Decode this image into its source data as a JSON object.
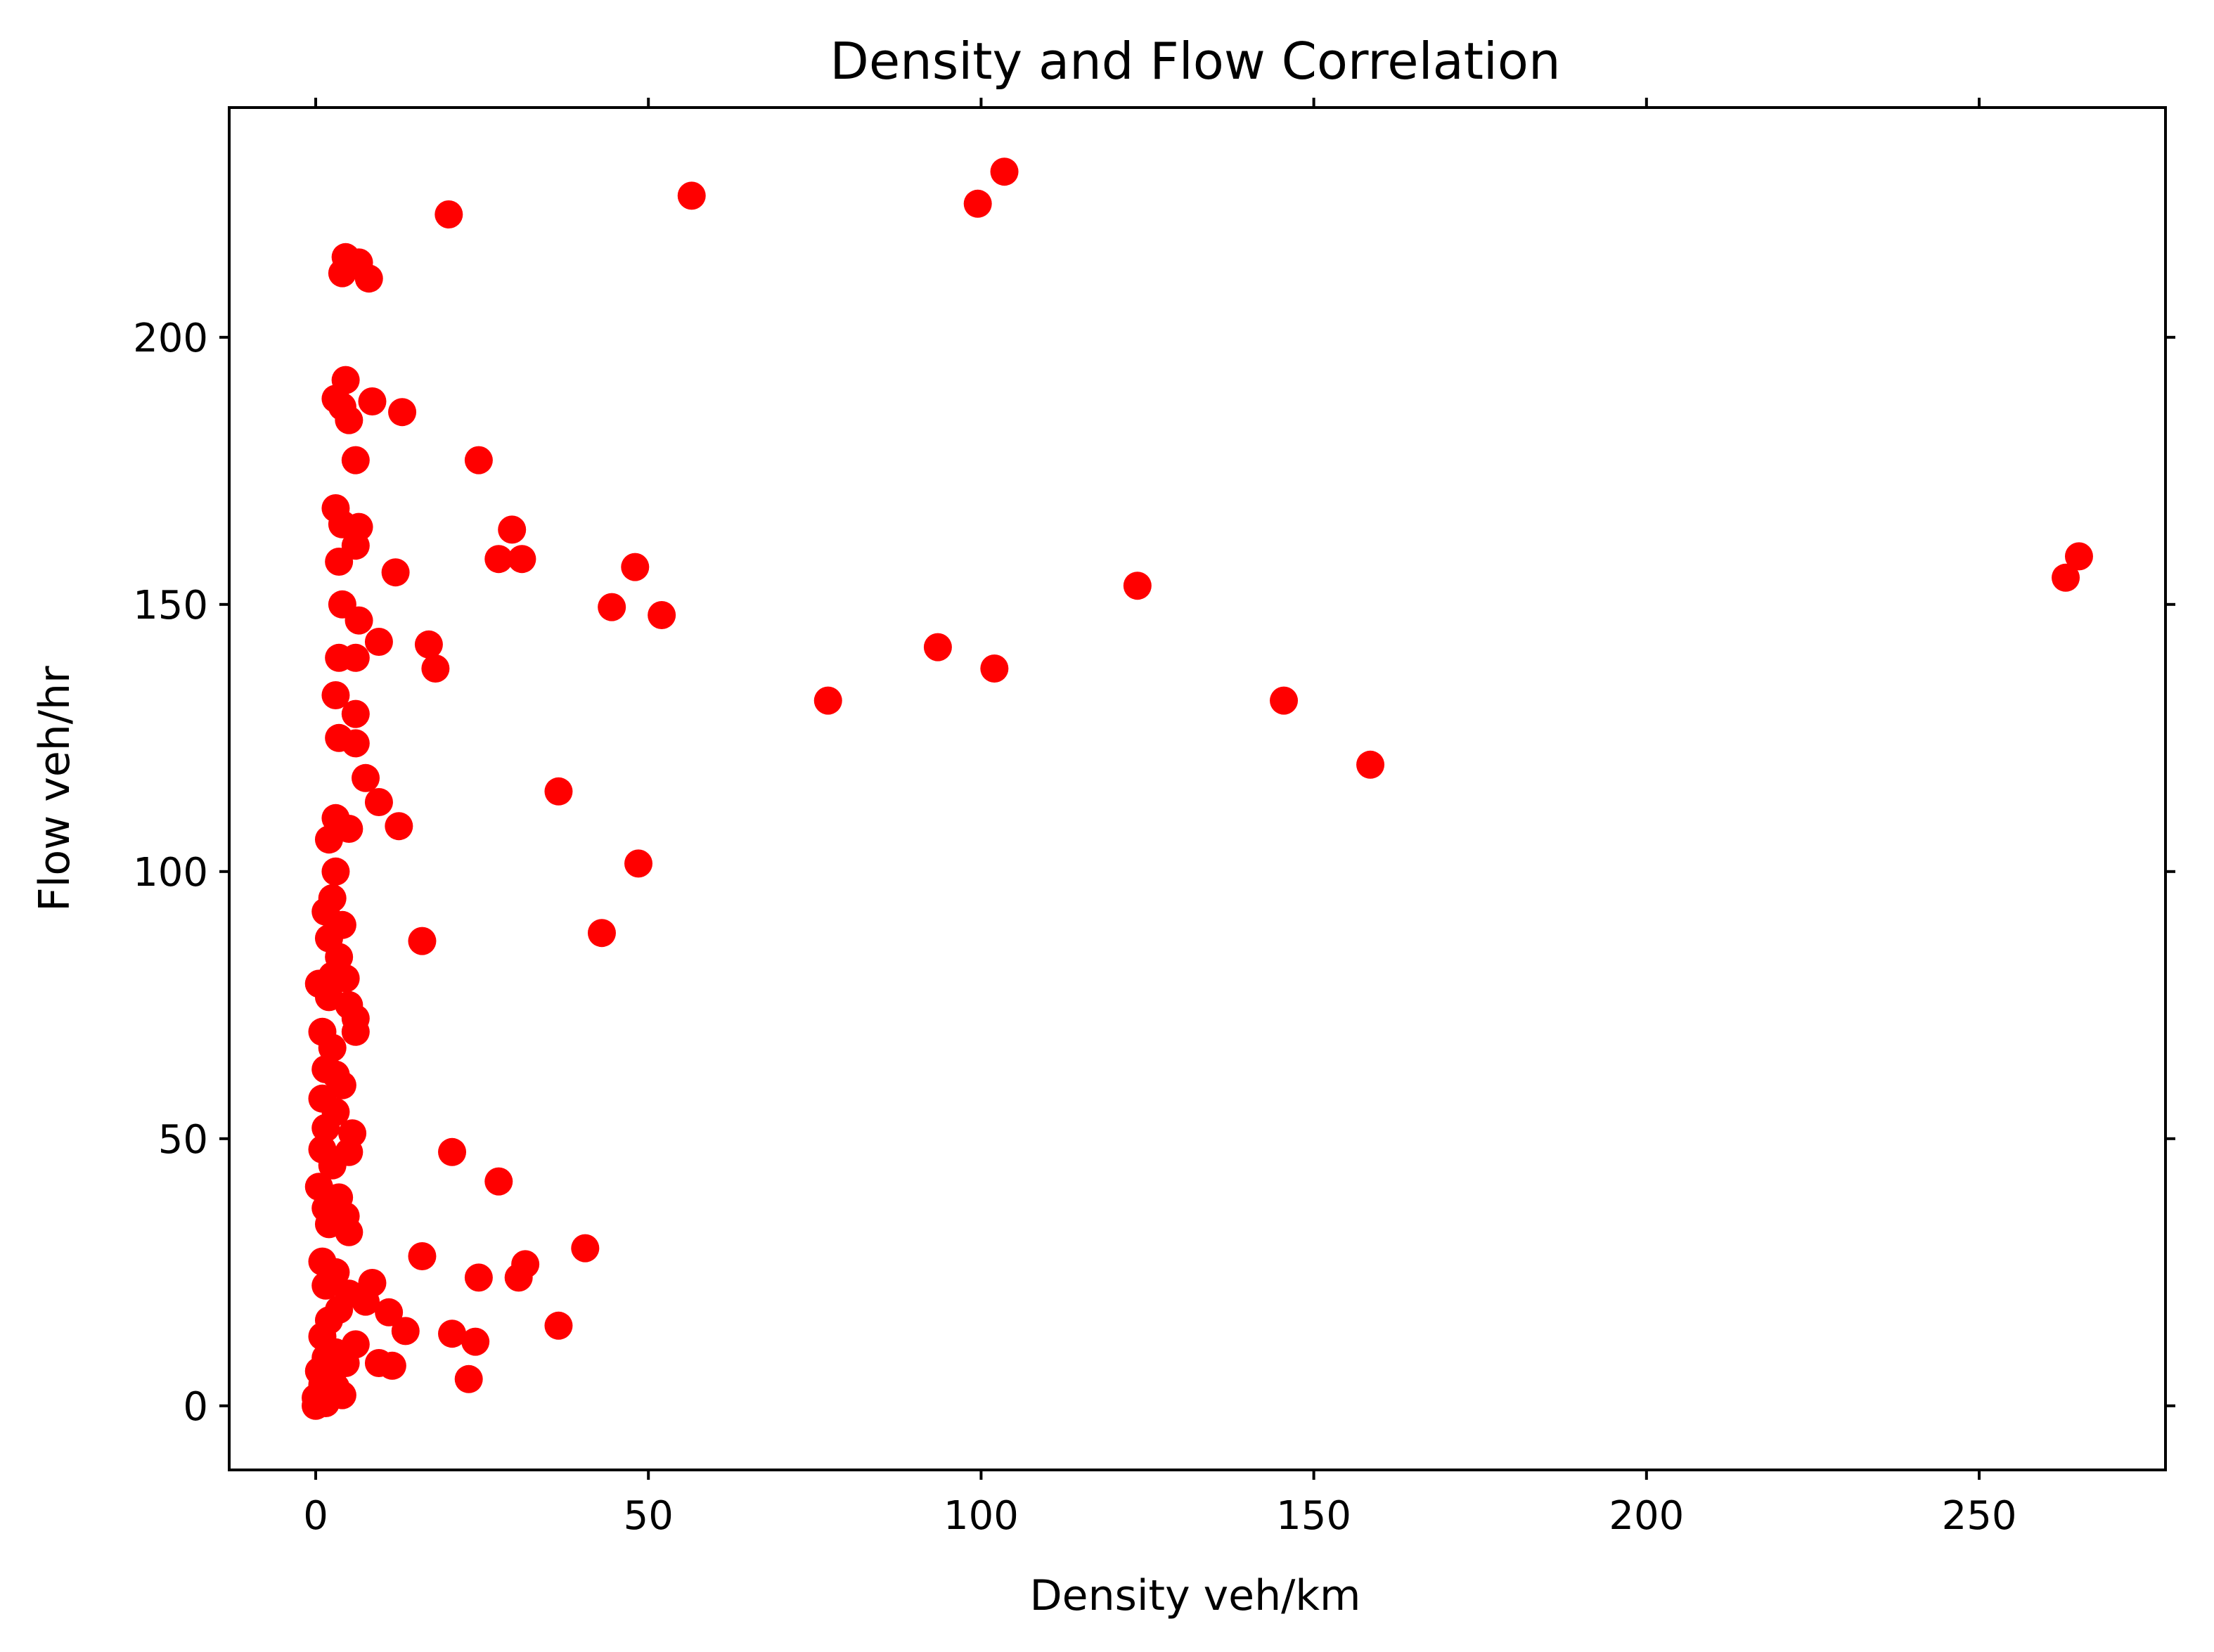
{
  "chart_data": {
    "type": "scatter",
    "title": "Density and Flow Correlation",
    "xlabel": "Density veh/km",
    "ylabel": "Flow veh/hr",
    "xlim": [
      -13,
      278
    ],
    "ylim": [
      -12,
      243
    ],
    "xticks": [
      0,
      50,
      100,
      150,
      200,
      250
    ],
    "yticks": [
      0,
      50,
      100,
      150,
      200
    ],
    "grid": false,
    "marker_color": "#ff0000",
    "series": [
      {
        "points": [
          [
            103.5,
            231
          ],
          [
            56.5,
            226.5
          ],
          [
            99.5,
            225
          ],
          [
            20,
            223
          ],
          [
            4.5,
            215
          ],
          [
            6.5,
            214
          ],
          [
            4,
            212
          ],
          [
            8,
            211
          ],
          [
            4.5,
            192
          ],
          [
            3,
            188.5
          ],
          [
            8.5,
            188
          ],
          [
            4,
            187
          ],
          [
            13,
            186
          ],
          [
            5,
            184.5
          ],
          [
            6,
            177
          ],
          [
            24.5,
            177
          ],
          [
            3,
            168
          ],
          [
            4,
            165
          ],
          [
            6.5,
            164.5
          ],
          [
            29.5,
            164
          ],
          [
            6,
            161
          ],
          [
            27.5,
            158.5
          ],
          [
            31,
            158.5
          ],
          [
            3.5,
            158
          ],
          [
            48,
            157
          ],
          [
            12,
            156
          ],
          [
            263,
            155
          ],
          [
            265,
            159
          ],
          [
            123.5,
            153.5
          ],
          [
            44.5,
            149.5
          ],
          [
            52,
            148
          ],
          [
            4,
            150
          ],
          [
            6.5,
            147
          ],
          [
            17,
            142.5
          ],
          [
            9.5,
            143
          ],
          [
            93.5,
            142
          ],
          [
            3.5,
            140
          ],
          [
            6,
            140
          ],
          [
            18,
            138
          ],
          [
            102,
            138
          ],
          [
            77,
            132
          ],
          [
            145.5,
            132
          ],
          [
            3,
            133
          ],
          [
            6,
            129.5
          ],
          [
            3.5,
            125
          ],
          [
            6,
            124
          ],
          [
            158.5,
            120
          ],
          [
            7.5,
            117.5
          ],
          [
            36.5,
            115
          ],
          [
            9.5,
            113
          ],
          [
            3,
            110
          ],
          [
            12.5,
            108.5
          ],
          [
            5,
            108
          ],
          [
            2,
            106
          ],
          [
            48.5,
            101.5
          ],
          [
            3,
            100
          ],
          [
            2.5,
            95
          ],
          [
            1.5,
            92.5
          ],
          [
            4,
            90
          ],
          [
            43,
            88.5
          ],
          [
            2,
            87.5
          ],
          [
            16,
            87
          ],
          [
            3.5,
            84
          ],
          [
            2.5,
            80.5
          ],
          [
            4.5,
            80
          ],
          [
            0.5,
            79
          ],
          [
            2,
            76.5
          ],
          [
            5,
            75
          ],
          [
            6,
            72.5
          ],
          [
            6,
            70
          ],
          [
            1,
            70
          ],
          [
            2.5,
            67
          ],
          [
            1.5,
            63
          ],
          [
            3,
            62
          ],
          [
            4,
            60
          ],
          [
            1,
            57.5
          ],
          [
            3,
            55
          ],
          [
            1.5,
            52
          ],
          [
            5.5,
            51
          ],
          [
            1,
            48
          ],
          [
            5,
            47.5
          ],
          [
            20.5,
            47.5
          ],
          [
            2.5,
            45
          ],
          [
            27.5,
            42
          ],
          [
            0.5,
            41
          ],
          [
            3.5,
            39
          ],
          [
            1.5,
            37
          ],
          [
            4.5,
            35.5
          ],
          [
            2,
            34
          ],
          [
            5,
            32.5
          ],
          [
            40.5,
            29.5
          ],
          [
            16,
            28
          ],
          [
            1,
            27
          ],
          [
            31.5,
            26.5
          ],
          [
            3,
            25
          ],
          [
            24.5,
            24
          ],
          [
            30.5,
            24
          ],
          [
            8.5,
            23
          ],
          [
            1.5,
            22.5
          ],
          [
            5,
            21
          ],
          [
            7.5,
            19.5
          ],
          [
            3.5,
            18
          ],
          [
            11,
            17.5
          ],
          [
            2,
            16
          ],
          [
            36.5,
            15
          ],
          [
            13.5,
            14
          ],
          [
            20.5,
            13.5
          ],
          [
            1,
            13
          ],
          [
            24,
            12
          ],
          [
            6,
            11.5
          ],
          [
            3,
            10
          ],
          [
            1.5,
            9
          ],
          [
            4.5,
            8
          ],
          [
            9.5,
            8
          ],
          [
            11.5,
            7.5
          ],
          [
            0.5,
            6.5
          ],
          [
            2.5,
            6
          ],
          [
            23,
            5
          ],
          [
            1,
            4
          ],
          [
            3,
            3.5
          ],
          [
            4,
            2
          ],
          [
            0,
            1.5
          ],
          [
            1.5,
            0.5
          ],
          [
            0,
            0
          ]
        ]
      }
    ]
  }
}
